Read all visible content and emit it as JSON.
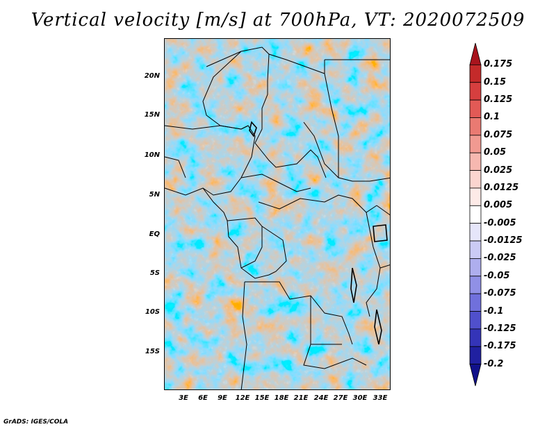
{
  "title": "Vertical velocity [m/s] at 700hPa, VT: 2020072509",
  "footer": "GrADS: IGES/COLA",
  "map": {
    "lat_ticks": [
      "20N",
      "15N",
      "10N",
      "5N",
      "EQ",
      "5S",
      "10S",
      "15S"
    ],
    "lon_ticks": [
      "3E",
      "6E",
      "9E",
      "12E",
      "15E",
      "18E",
      "21E",
      "24E",
      "27E",
      "30E",
      "33E"
    ]
  },
  "colorbar": {
    "levels": [
      "0.175",
      "0.15",
      "0.125",
      "0.1",
      "0.075",
      "0.05",
      "0.025",
      "0.0125",
      "0.005",
      "-0.005",
      "-0.0125",
      "-0.025",
      "-0.05",
      "-0.075",
      "-0.1",
      "-0.125",
      "-0.175",
      "-0.2"
    ],
    "colors": [
      "#a8141d",
      "#c42a2a",
      "#d63f3f",
      "#e25a56",
      "#ea7a72",
      "#f19a91",
      "#f6b8b0",
      "#fbd5cf",
      "#fdeae7",
      "#ffffff",
      "#e6e6fa",
      "#cbcbf5",
      "#aeaeee",
      "#9090e6",
      "#7070dc",
      "#5050cc",
      "#3434b8",
      "#2020a0",
      "#11118a"
    ]
  }
}
